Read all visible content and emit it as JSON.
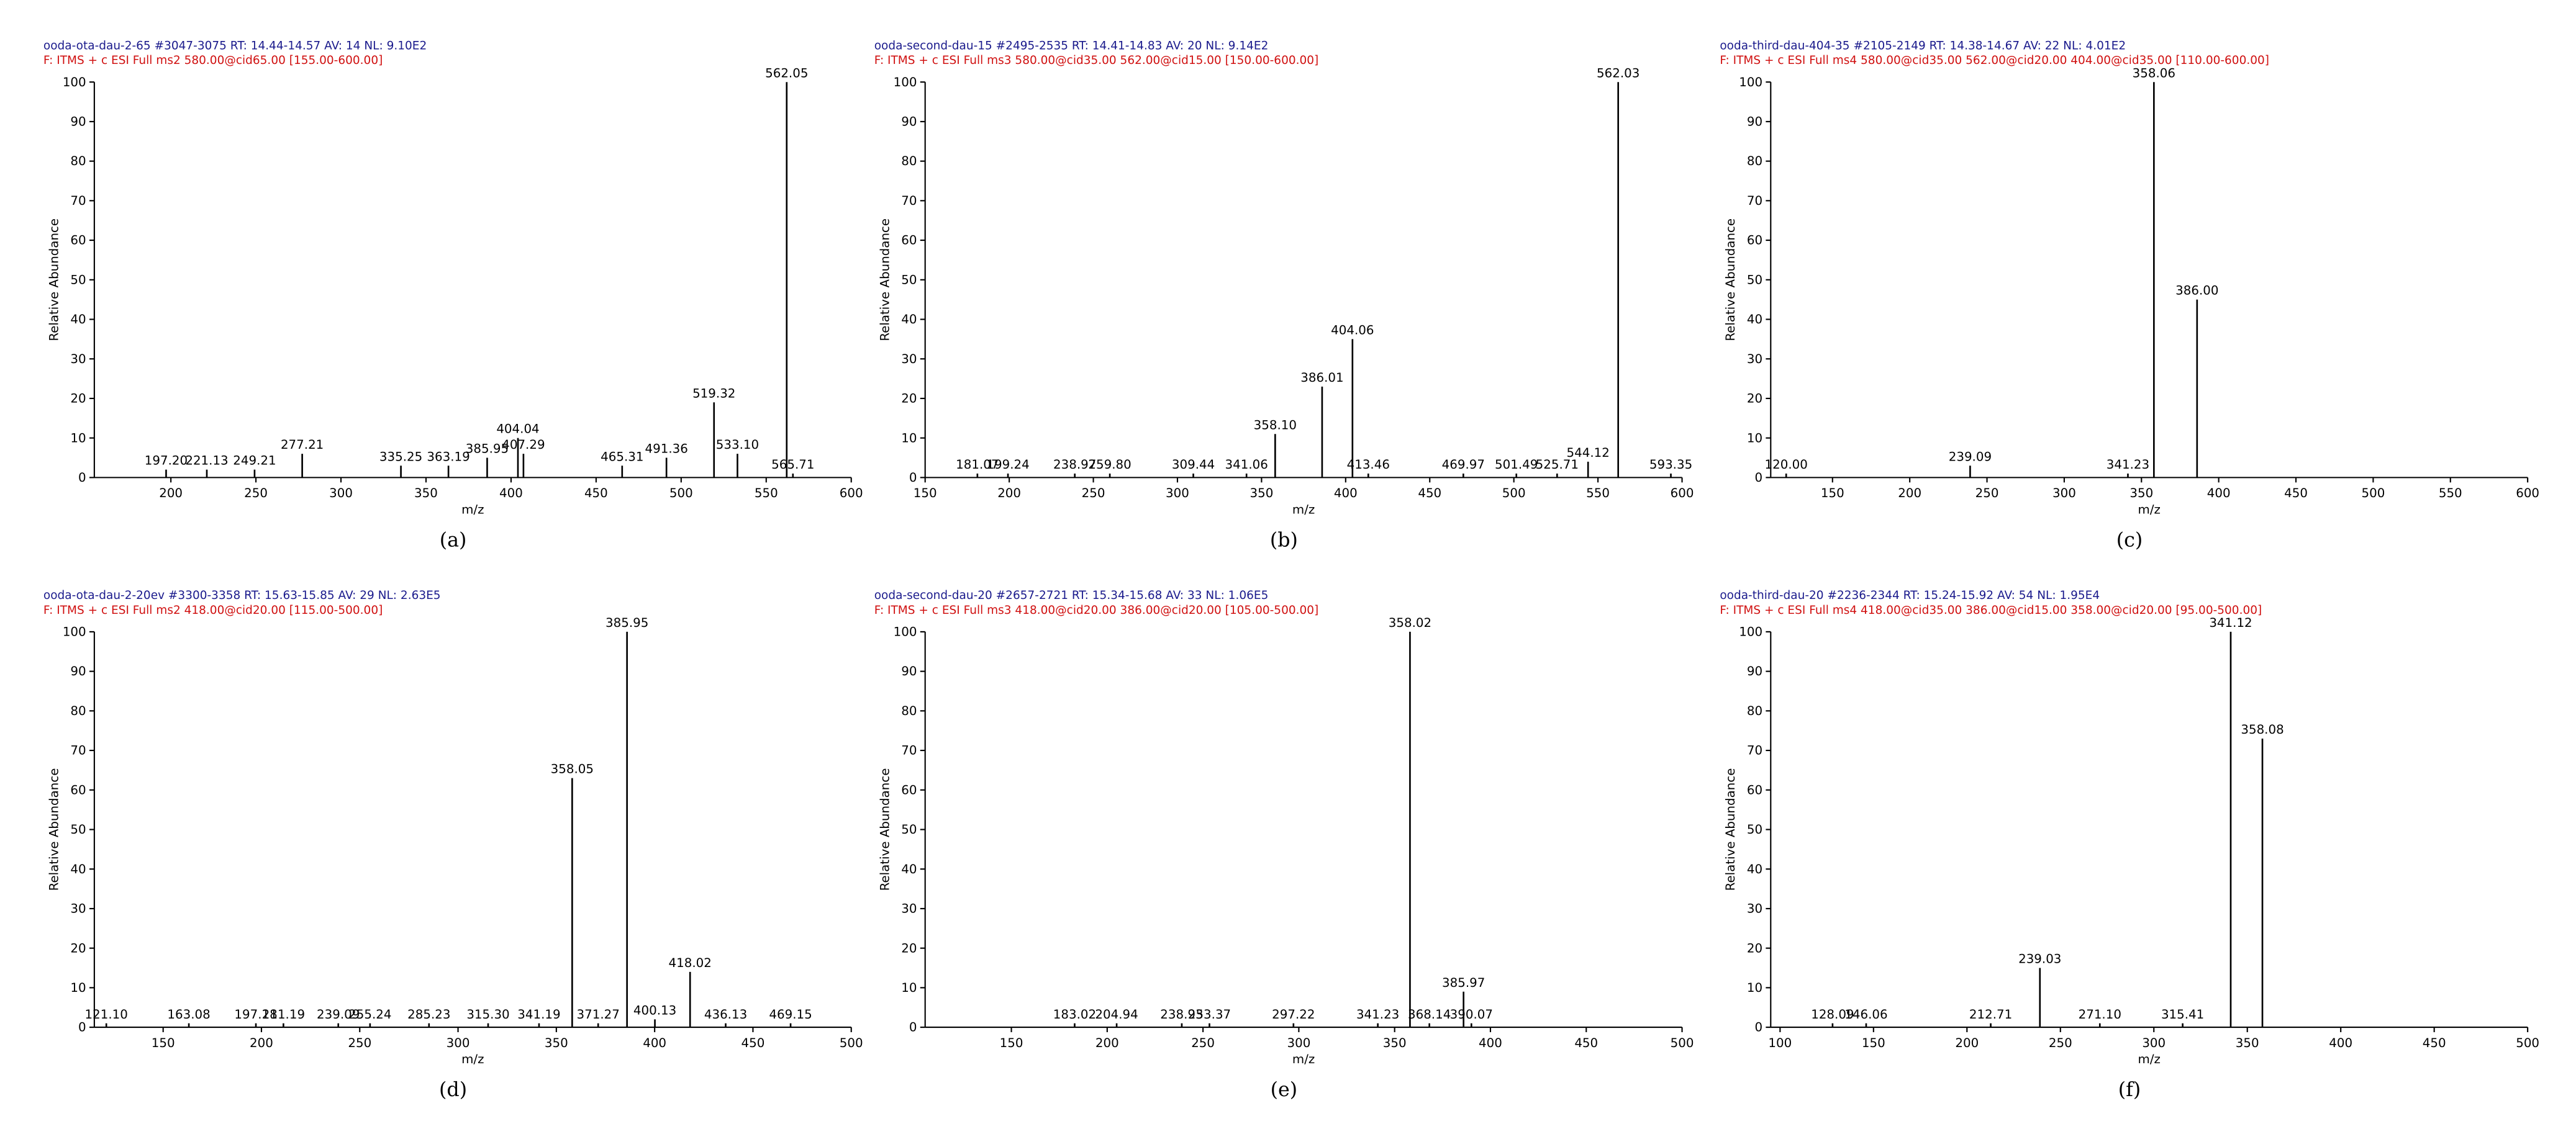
{
  "chart_data": [
    {
      "type": "bar",
      "header": "ooda-ota-dau-2-65 #3047-3075  RT: 14.44-14.57  AV: 14  NL: 9.10E2",
      "subheader": "F: ITMS + c ESI Full ms2 580.00@cid65.00 [155.00-600.00]",
      "xlabel": "m/z",
      "ylabel": "Relative Abundance",
      "label": "(a)",
      "color": "#000000",
      "x": [
        197.2,
        221.13,
        249.21,
        277.21,
        335.25,
        363.19,
        385.95,
        404.04,
        407.29,
        465.31,
        491.36,
        519.32,
        533.1,
        562.05,
        565.71
      ],
      "x_labels": [
        "197.20",
        "221.13",
        "249.21",
        "277.21",
        "335.25",
        "363.19",
        "385.95",
        "404.04",
        "407.29",
        "465.31",
        "491.36",
        "519.32",
        "533.10",
        "562.05",
        "565.71"
      ],
      "values": [
        2,
        2,
        2,
        6,
        3,
        3,
        5,
        10,
        6,
        3,
        5,
        19,
        6,
        100,
        1
      ],
      "xlim": [
        155,
        600
      ],
      "xticks": [
        200,
        250,
        300,
        350,
        400,
        450,
        500,
        550,
        600
      ],
      "ylim": [
        0,
        100
      ],
      "yticks": [
        0,
        10,
        20,
        30,
        40,
        50,
        60,
        70,
        80,
        90,
        100
      ]
    },
    {
      "type": "bar",
      "header": "ooda-second-dau-15 #2495-2535  RT: 14.41-14.83  AV: 20  NL: 9.14E2",
      "subheader": "F: ITMS + c ESI Full ms3 580.00@cid35.00 562.00@cid15.00 [150.00-600.00]",
      "xlabel": "m/z",
      "ylabel": "Relative Abundance",
      "label": "(b)",
      "color": "#000000",
      "x": [
        181.07,
        199.24,
        238.97,
        259.8,
        309.44,
        341.06,
        358.1,
        386.01,
        404.06,
        413.46,
        469.97,
        501.49,
        525.71,
        544.12,
        562.03,
        593.35
      ],
      "x_labels": [
        "181.07",
        "199.24",
        "238.97",
        "259.80",
        "309.44",
        "341.06",
        "358.10",
        "386.01",
        "404.06",
        "413.46",
        "469.97",
        "501.49",
        "525.71",
        "544.12",
        "562.03",
        "593.35"
      ],
      "values": [
        1,
        1,
        1,
        1,
        1,
        1,
        11,
        23,
        35,
        1,
        1,
        1,
        1,
        4,
        100,
        1
      ],
      "xlim": [
        150,
        600
      ],
      "xticks": [
        150,
        200,
        250,
        300,
        350,
        400,
        450,
        500,
        550,
        600
      ],
      "ylim": [
        0,
        100
      ],
      "yticks": [
        0,
        10,
        20,
        30,
        40,
        50,
        60,
        70,
        80,
        90,
        100
      ]
    },
    {
      "type": "bar",
      "header": "ooda-third-dau-404-35 #2105-2149  RT: 14.38-14.67  AV: 22  NL: 4.01E2",
      "subheader": "F: ITMS + c ESI Full ms4 580.00@cid35.00 562.00@cid20.00 404.00@cid35.00 [110.00-600.00]",
      "xlabel": "m/z",
      "ylabel": "Relative Abundance",
      "label": "(c)",
      "color": "#000000",
      "x": [
        120.0,
        239.09,
        341.23,
        358.06,
        386.0
      ],
      "x_labels": [
        "120.00",
        "239.09",
        "341.23",
        "358.06",
        "386.00"
      ],
      "values": [
        1,
        3,
        1,
        100,
        45
      ],
      "xlim": [
        110,
        600
      ],
      "xticks": [
        150,
        200,
        250,
        300,
        350,
        400,
        450,
        500,
        550,
        600
      ],
      "ylim": [
        0,
        100
      ],
      "yticks": [
        0,
        10,
        20,
        30,
        40,
        50,
        60,
        70,
        80,
        90,
        100
      ]
    },
    {
      "type": "bar",
      "header": "ooda-ota-dau-2-20ev #3300-3358  RT: 15.63-15.85  AV: 29  NL: 2.63E5",
      "subheader": "F: ITMS + c ESI Full ms2 418.00@cid20.00 [115.00-500.00]",
      "xlabel": "m/z",
      "ylabel": "Relative Abundance",
      "label": "(d)",
      "color": "#000000",
      "x": [
        121.1,
        163.08,
        197.18,
        211.19,
        239.09,
        255.24,
        285.23,
        315.3,
        341.19,
        358.05,
        371.27,
        385.95,
        400.13,
        418.02,
        436.13,
        469.15
      ],
      "x_labels": [
        "121.10",
        "163.08",
        "197.18",
        "211.19",
        "239.09",
        "255.24",
        "285.23",
        "315.30",
        "341.19",
        "358.05",
        "371.27",
        "385.95",
        "400.13",
        "418.02",
        "436.13",
        "469.15"
      ],
      "values": [
        1,
        1,
        1,
        1,
        1,
        1,
        1,
        1,
        1,
        63,
        1,
        100,
        2,
        14,
        1,
        1
      ],
      "xlim": [
        115,
        500
      ],
      "xticks": [
        150,
        200,
        250,
        300,
        350,
        400,
        450,
        500
      ],
      "ylim": [
        0,
        100
      ],
      "yticks": [
        0,
        10,
        20,
        30,
        40,
        50,
        60,
        70,
        80,
        90,
        100
      ]
    },
    {
      "type": "bar",
      "header": "ooda-second-dau-20 #2657-2721  RT: 15.34-15.68  AV: 33  NL: 1.06E5",
      "subheader": "F: ITMS + c ESI Full ms3 418.00@cid20.00 386.00@cid20.00 [105.00-500.00]",
      "xlabel": "m/z",
      "ylabel": "Relative Abundance",
      "label": "(e)",
      "color": "#000000",
      "x": [
        183.02,
        204.94,
        238.93,
        253.37,
        297.22,
        341.23,
        358.02,
        368.14,
        385.97,
        390.07
      ],
      "x_labels": [
        "183.02",
        "204.94",
        "238.93",
        "253.37",
        "297.22",
        "341.23",
        "358.02",
        "368.14",
        "385.97",
        "390.07"
      ],
      "values": [
        1,
        1,
        1,
        1,
        1,
        1,
        100,
        1,
        9,
        1
      ],
      "xlim": [
        105,
        500
      ],
      "xticks": [
        150,
        200,
        250,
        300,
        350,
        400,
        450,
        500
      ],
      "ylim": [
        0,
        100
      ],
      "yticks": [
        0,
        10,
        20,
        30,
        40,
        50,
        60,
        70,
        80,
        90,
        100
      ]
    },
    {
      "type": "bar",
      "header": "ooda-third-dau-20 #2236-2344  RT: 15.24-15.92  AV: 54  NL: 1.95E4",
      "subheader": "F: ITMS + c ESI Full ms4 418.00@cid35.00 386.00@cid15.00 358.00@cid20.00 [95.00-500.00]",
      "xlabel": "m/z",
      "ylabel": "Relative Abundance",
      "label": "(f)",
      "color": "#000000",
      "x": [
        128.09,
        146.06,
        212.71,
        239.03,
        271.1,
        315.41,
        341.12,
        358.08
      ],
      "x_labels": [
        "128.09",
        "146.06",
        "212.71",
        "239.03",
        "271.10",
        "315.41",
        "341.12",
        "358.08"
      ],
      "values": [
        1,
        1,
        1,
        15,
        1,
        1,
        100,
        73
      ],
      "xlim": [
        95,
        500
      ],
      "xticks": [
        100,
        150,
        200,
        250,
        300,
        350,
        400,
        450,
        500
      ],
      "ylim": [
        0,
        100
      ],
      "yticks": [
        0,
        10,
        20,
        30,
        40,
        50,
        60,
        70,
        80,
        90,
        100
      ]
    }
  ]
}
